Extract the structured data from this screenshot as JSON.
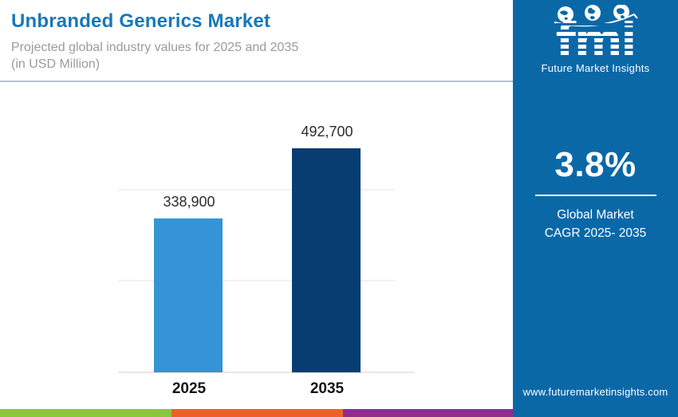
{
  "header": {
    "title": "Unbranded Generics Market",
    "subtitle_line1": "Projected global industry values for 2025 and 2035",
    "subtitle_line2": "(in USD Million)"
  },
  "chart_data": {
    "type": "bar",
    "title": "Unbranded Generics Market",
    "subtitle": "Projected global industry values for 2025 and 2035 (in USD Million)",
    "unit": "USD Million",
    "categories": [
      "2025",
      "2035"
    ],
    "values": [
      338900,
      492700
    ],
    "value_labels": [
      "338,900",
      "492,700"
    ],
    "bar_colors": [
      "#3494d6",
      "#083d72"
    ],
    "ylim": [
      0,
      500000
    ],
    "gridlines": [
      200000,
      400000
    ],
    "grid": "faint horizontal lines, no y-axis labels",
    "legend_position": "none"
  },
  "sidebar": {
    "logo": {
      "text": "fmi",
      "tagline": "Future Market Insights",
      "icons": [
        "globe-americas-icon",
        "globe-europe-icon",
        "globe-asia-icon",
        "orbit-swoosh-icon"
      ]
    },
    "cagr": {
      "value": "3.8%",
      "label_line1": "Global Market",
      "label_line2": "CAGR 2025- 2035"
    },
    "website": "www.futuremarketinsights.com"
  },
  "colors": {
    "title_blue": "#1878b8",
    "subtitle_gray": "#9b9b9b",
    "header_divider": "#a9c8e2",
    "sidebar_bg": "#0b68a7",
    "bar_2025": "#3494d6",
    "bar_2035": "#083d72",
    "stripe_green": "#8cc540",
    "stripe_orange": "#e8632a",
    "stripe_purple": "#8e2d8f"
  },
  "footer_stripe_colors": [
    "#8cc540",
    "#e8632a",
    "#8e2d8f"
  ]
}
